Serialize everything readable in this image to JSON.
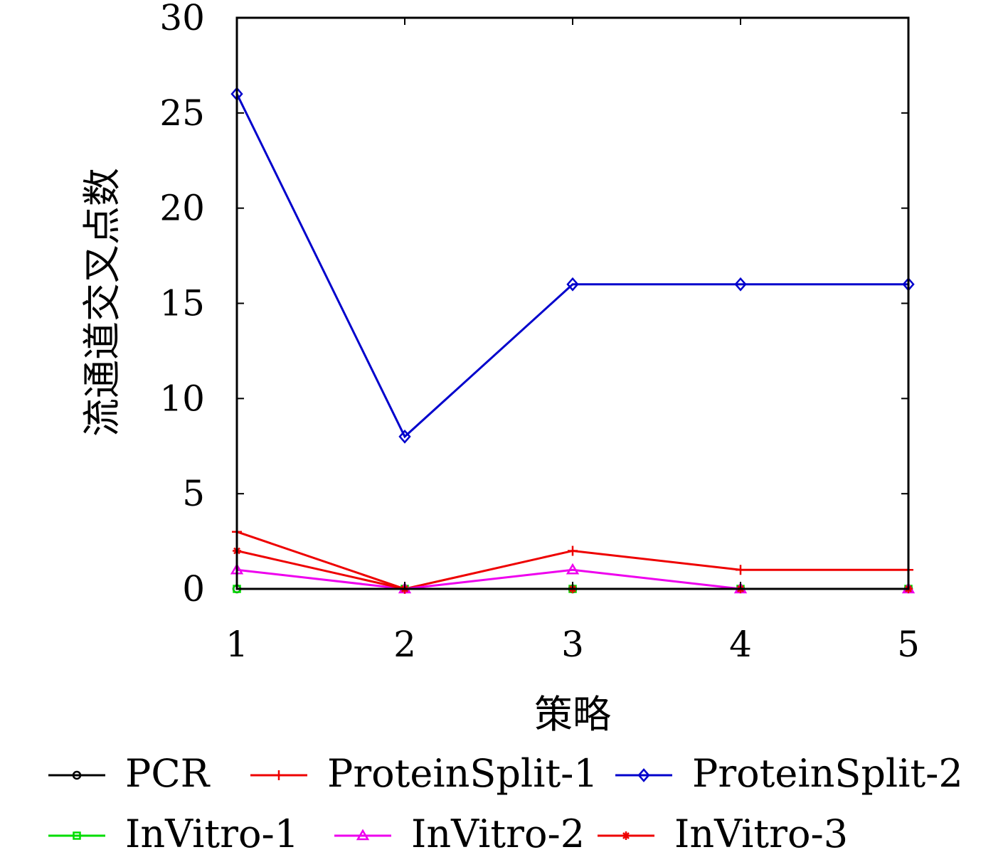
{
  "chart_data": {
    "type": "line",
    "title": "",
    "xlabel": "策略",
    "ylabel": "流通道交叉点数",
    "x": [
      1,
      2,
      3,
      4,
      5
    ],
    "xlim": [
      1,
      5
    ],
    "ylim": [
      0,
      30
    ],
    "x_ticks": [
      1,
      2,
      3,
      4,
      5
    ],
    "y_ticks": [
      0,
      5,
      10,
      15,
      20,
      25,
      30
    ],
    "grid": false,
    "legend_position": "bottom",
    "series": [
      {
        "name": "PCR",
        "values": [
          0,
          0,
          0,
          0,
          0
        ],
        "color": "#000000",
        "marker": "circle"
      },
      {
        "name": "ProteinSplit-1",
        "values": [
          3,
          0,
          2,
          1,
          1
        ],
        "color": "#ee0000",
        "marker": "plus"
      },
      {
        "name": "ProteinSplit-2",
        "values": [
          26,
          8,
          16,
          16,
          16
        ],
        "color": "#0000cc",
        "marker": "diamond"
      },
      {
        "name": "InVitro-1",
        "values": [
          0,
          0,
          0,
          0,
          0
        ],
        "color": "#00dd00",
        "marker": "square"
      },
      {
        "name": "InVitro-2",
        "values": [
          1,
          0,
          1,
          0,
          0
        ],
        "color": "#ee00ee",
        "marker": "triangle"
      },
      {
        "name": "InVitro-3",
        "values": [
          2,
          0,
          0,
          0,
          0
        ],
        "color": "#ee0000",
        "marker": "star"
      }
    ]
  }
}
